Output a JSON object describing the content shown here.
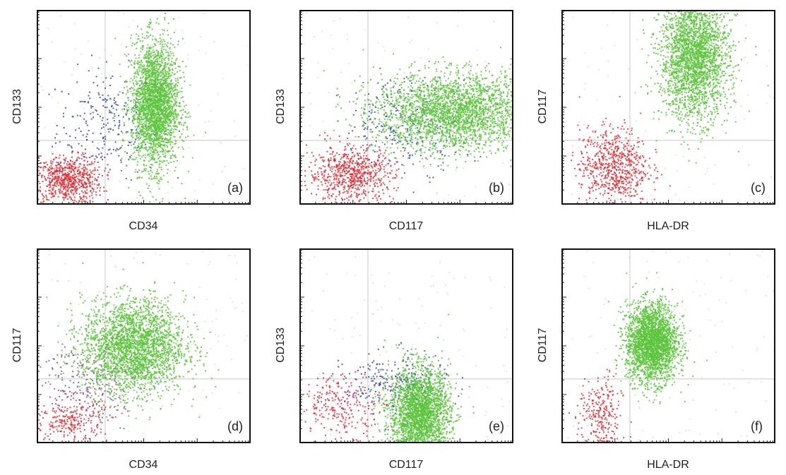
{
  "colors": {
    "green": "#5cc43c",
    "red": "#d8282e",
    "blue": "#2c3f9a",
    "purple": "#7a4b8c",
    "axis": "#111111",
    "gridline": "#c8c8c8"
  },
  "chart_data": [
    {
      "type": "scatter",
      "panel": "(a)",
      "xlabel": "CD34",
      "ylabel": "CD133",
      "xscale": "log",
      "yscale": "log",
      "grid": "quadrant",
      "populations": [
        {
          "color": "green",
          "center": [
            0.55,
            0.52
          ],
          "spread": [
            0.055,
            0.16
          ],
          "density": "high"
        },
        {
          "color": "blue",
          "center": [
            0.33,
            0.42
          ],
          "spread": [
            0.12,
            0.14
          ],
          "density": "low"
        },
        {
          "color": "red",
          "center": [
            0.14,
            0.13
          ],
          "spread": [
            0.08,
            0.06
          ],
          "density": "medium"
        }
      ]
    },
    {
      "type": "scatter",
      "panel": "(b)",
      "xlabel": "CD117",
      "ylabel": "CD133",
      "xscale": "log",
      "yscale": "log",
      "grid": "quadrant",
      "populations": [
        {
          "color": "green",
          "center": [
            0.72,
            0.48
          ],
          "spread": [
            0.18,
            0.1
          ],
          "density": "high"
        },
        {
          "color": "blue",
          "center": [
            0.5,
            0.42
          ],
          "spread": [
            0.15,
            0.12
          ],
          "density": "low"
        },
        {
          "color": "red",
          "center": [
            0.24,
            0.16
          ],
          "spread": [
            0.1,
            0.07
          ],
          "density": "medium"
        }
      ]
    },
    {
      "type": "scatter",
      "panel": "(c)",
      "xlabel": "HLA-DR",
      "ylabel": "CD117",
      "xscale": "log",
      "yscale": "log",
      "grid": "quadrant",
      "populations": [
        {
          "color": "green",
          "center": [
            0.62,
            0.76
          ],
          "spread": [
            0.08,
            0.16
          ],
          "density": "high"
        },
        {
          "color": "red",
          "center": [
            0.24,
            0.2
          ],
          "spread": [
            0.08,
            0.1
          ],
          "density": "medium"
        }
      ]
    },
    {
      "type": "scatter",
      "panel": "(d)",
      "xlabel": "CD34",
      "ylabel": "CD117",
      "xscale": "log",
      "yscale": "log",
      "grid": "quadrant",
      "populations": [
        {
          "color": "green",
          "center": [
            0.45,
            0.5
          ],
          "spread": [
            0.12,
            0.12
          ],
          "density": "high"
        },
        {
          "color": "purple",
          "center": [
            0.25,
            0.32
          ],
          "spread": [
            0.12,
            0.12
          ],
          "density": "low"
        },
        {
          "color": "red",
          "center": [
            0.15,
            0.12
          ],
          "spread": [
            0.08,
            0.06
          ],
          "density": "low"
        }
      ]
    },
    {
      "type": "scatter",
      "panel": "(e)",
      "xlabel": "CD117",
      "ylabel": "CD133",
      "xscale": "log",
      "yscale": "log",
      "grid": "quadrant",
      "populations": [
        {
          "color": "green",
          "center": [
            0.56,
            0.15
          ],
          "spread": [
            0.07,
            0.12
          ],
          "density": "high"
        },
        {
          "color": "blue",
          "center": [
            0.45,
            0.3
          ],
          "spread": [
            0.12,
            0.08
          ],
          "density": "low"
        },
        {
          "color": "red",
          "center": [
            0.2,
            0.2
          ],
          "spread": [
            0.1,
            0.08
          ],
          "density": "low"
        }
      ]
    },
    {
      "type": "scatter",
      "panel": "(f)",
      "xlabel": "HLA-DR",
      "ylabel": "CD117",
      "xscale": "log",
      "yscale": "log",
      "grid": "quadrant",
      "populations": [
        {
          "color": "green",
          "center": [
            0.42,
            0.52
          ],
          "spread": [
            0.06,
            0.1
          ],
          "density": "high"
        },
        {
          "color": "red",
          "center": [
            0.18,
            0.14
          ],
          "spread": [
            0.05,
            0.1
          ],
          "density": "low"
        }
      ]
    }
  ]
}
